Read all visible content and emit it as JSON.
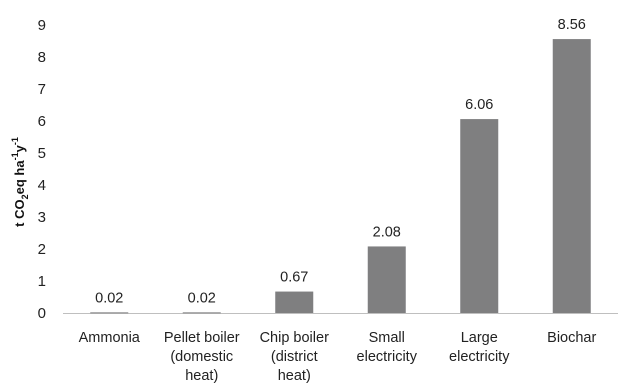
{
  "chart_data": {
    "type": "bar",
    "title": "",
    "xlabel": "",
    "ylabel": {
      "parts": [
        "t CO",
        "2",
        "eq ha",
        "-1",
        "y",
        "-1"
      ]
    },
    "ylim": [
      0,
      9
    ],
    "yticks": [
      "0",
      "1",
      "2",
      "3",
      "4",
      "5",
      "6",
      "7",
      "8",
      "9"
    ],
    "grid": false,
    "legend": "none",
    "bar_color": "#7f7f80",
    "categories": [
      [
        "Ammonia"
      ],
      [
        "Pellet boiler",
        "(domestic",
        "heat)"
      ],
      [
        "Chip boiler",
        "(district",
        "heat)"
      ],
      [
        "Small",
        "electricity"
      ],
      [
        "Large",
        "electricity"
      ],
      [
        "Biochar"
      ]
    ],
    "values": [
      0.02,
      0.02,
      0.67,
      2.08,
      6.06,
      8.56
    ],
    "data_labels": [
      "0.02",
      "0.02",
      "0.67",
      "2.08",
      "6.06",
      "8.56"
    ]
  }
}
